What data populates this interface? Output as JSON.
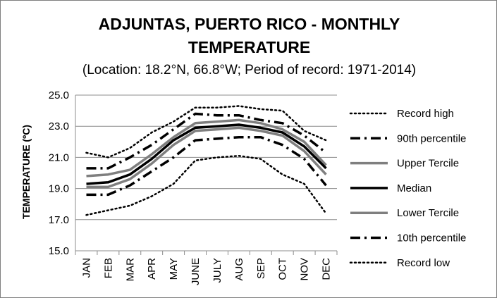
{
  "chart_data": {
    "type": "line",
    "title_line1": "ADJUNTAS, PUERTO RICO - MONTHLY",
    "title_line2": "TEMPERATURE",
    "subtitle": "(Location: 18.2°N, 66.8°W; Period of record: 1971-2014)",
    "ylabel": "TEMPERATURE (ºC)",
    "xlabel": "",
    "ylim": [
      15.0,
      25.0
    ],
    "yticks": [
      "15.0",
      "17.0",
      "19.0",
      "21.0",
      "23.0",
      "25.0"
    ],
    "grid": true,
    "legend_position": "right",
    "categories": [
      "JAN",
      "FEB",
      "MAR",
      "APR",
      "MAY",
      "JUNE",
      "JULY",
      "AUG",
      "SEP",
      "OCT",
      "NOV",
      "DEC"
    ],
    "series": [
      {
        "name": "Record high",
        "color": "#000000",
        "style": "dotted",
        "values": [
          21.3,
          21.0,
          21.6,
          22.6,
          23.3,
          24.2,
          24.2,
          24.3,
          24.1,
          24.0,
          22.7,
          22.1
        ]
      },
      {
        "name": "90th percentile",
        "color": "#000000",
        "style": "dashdot",
        "values": [
          20.3,
          20.3,
          21.0,
          21.8,
          22.8,
          23.8,
          23.7,
          23.7,
          23.4,
          23.2,
          22.4,
          21.3
        ]
      },
      {
        "name": "Upper Tercile",
        "color": "#7f7f7f",
        "style": "solid",
        "values": [
          19.8,
          19.9,
          20.2,
          21.2,
          22.3,
          23.2,
          23.3,
          23.4,
          23.2,
          22.8,
          22.0,
          20.5
        ]
      },
      {
        "name": "Median",
        "color": "#000000",
        "style": "solid",
        "values": [
          19.3,
          19.4,
          19.9,
          20.9,
          22.1,
          22.9,
          23.0,
          23.1,
          22.9,
          22.6,
          21.7,
          20.3
        ]
      },
      {
        "name": "Lower Tercile",
        "color": "#7f7f7f",
        "style": "solid",
        "values": [
          19.1,
          19.1,
          19.6,
          20.6,
          21.8,
          22.7,
          22.8,
          22.9,
          22.7,
          22.4,
          21.4,
          19.9
        ]
      },
      {
        "name": "10th percentile",
        "color": "#000000",
        "style": "dashdot",
        "values": [
          18.6,
          18.6,
          19.2,
          20.1,
          21.0,
          22.1,
          22.2,
          22.3,
          22.3,
          21.8,
          20.9,
          19.2
        ]
      },
      {
        "name": "Record low",
        "color": "#000000",
        "style": "dotted",
        "values": [
          17.3,
          17.6,
          17.9,
          18.5,
          19.3,
          20.8,
          21.0,
          21.1,
          20.9,
          19.9,
          19.3,
          17.4
        ]
      }
    ]
  }
}
